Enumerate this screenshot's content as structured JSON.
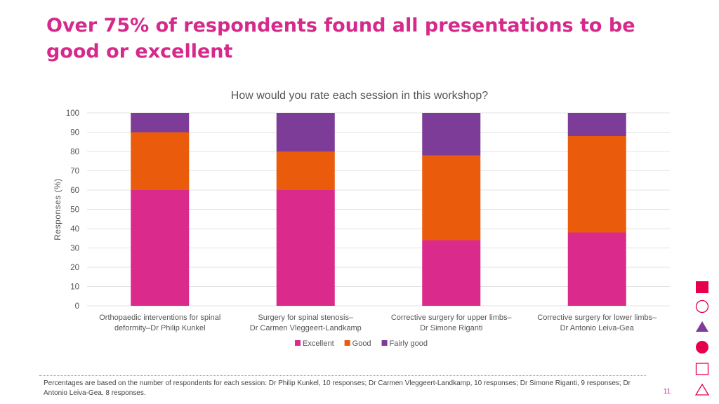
{
  "slide": {
    "title": "Over 75% of respondents found all presentations to be good or excellent",
    "footnote": "Percentages are based on the number of respondents for each session: Dr Philip Kunkel, 10 responses; Dr Carmen Vleggeert-Landkamp, 10 responses; Dr Simone Riganti, 9 responses; Dr Antonio Leiva-Gea, 8 responses.",
    "page_number": "11"
  },
  "colors": {
    "accent": "#d6298c",
    "shape_pink": "#e6004c",
    "shape_purple": "#7b3f98"
  },
  "decor_shapes": [
    "filled-square",
    "outline-circle",
    "filled-triangle",
    "filled-circle",
    "outline-square",
    "outline-triangle"
  ],
  "chart_data": {
    "type": "bar",
    "stacked": true,
    "title": "How would you rate each session in this workshop?",
    "xlabel": "",
    "ylabel": "Responses (%)",
    "ylim": [
      0,
      100
    ],
    "yticks": [
      0,
      10,
      20,
      30,
      40,
      50,
      60,
      70,
      80,
      90,
      100
    ],
    "grid": true,
    "legend_position": "bottom",
    "categories": [
      [
        "Orthopaedic interventions for spinal",
        "deformity–Dr Philip Kunkel"
      ],
      [
        "Surgery for spinal stenosis–",
        "Dr Carmen Vleggeert-Landkamp"
      ],
      [
        "Corrective surgery for upper limbs–",
        "Dr Simone Riganti"
      ],
      [
        "Corrective surgery for lower limbs–",
        "Dr Antonio Leiva-Gea"
      ]
    ],
    "series": [
      {
        "name": "Excellent",
        "color": "#da2a8c",
        "values": [
          60,
          60,
          34,
          38
        ]
      },
      {
        "name": "Good",
        "color": "#ea5b0c",
        "values": [
          30,
          20,
          44,
          50
        ]
      },
      {
        "name": "Fairly good",
        "color": "#7d3c98",
        "values": [
          10,
          20,
          22,
          12
        ]
      }
    ]
  }
}
